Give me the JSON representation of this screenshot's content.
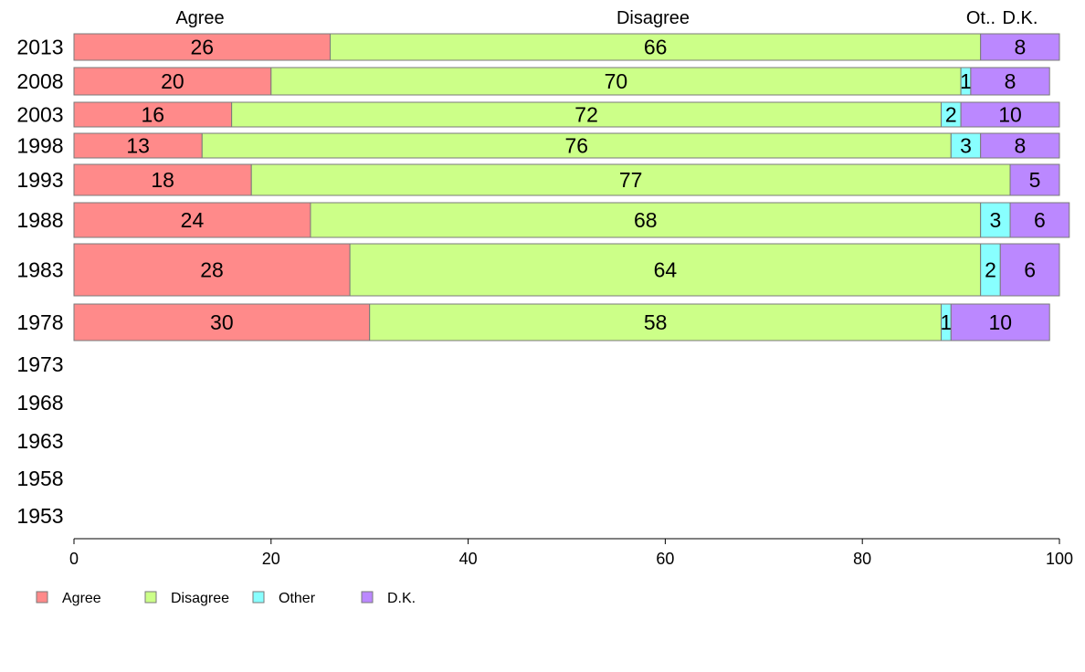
{
  "chart_data": {
    "type": "bar",
    "orientation": "horizontal",
    "stacked": true,
    "title": "",
    "xlabel": "",
    "ylabel": "",
    "xlim": [
      0,
      100
    ],
    "x_ticks": [
      0,
      20,
      40,
      60,
      80,
      100
    ],
    "grid": false,
    "legend_placement": "bottom-left",
    "categories": [
      "2013",
      "2008",
      "2003",
      "1998",
      "1993",
      "1988",
      "1983",
      "1978",
      "1973",
      "1968",
      "1963",
      "1958",
      "1953"
    ],
    "column_headers": [
      "Agree",
      "Disagree",
      "Ot..",
      "D.K."
    ],
    "series": [
      {
        "name": "Agree",
        "color": "#ff8a8a",
        "values": [
          26,
          20,
          16,
          13,
          18,
          24,
          28,
          30,
          null,
          null,
          null,
          null,
          null
        ]
      },
      {
        "name": "Disagree",
        "color": "#ccff88",
        "values": [
          66,
          70,
          72,
          76,
          77,
          68,
          64,
          58,
          null,
          null,
          null,
          null,
          null
        ]
      },
      {
        "name": "Other",
        "color": "#88ffff",
        "values": [
          0,
          1,
          2,
          3,
          0,
          3,
          2,
          1,
          null,
          null,
          null,
          null,
          null
        ]
      },
      {
        "name": "D.K.",
        "color": "#bb88ff",
        "values": [
          8,
          8,
          10,
          8,
          5,
          6,
          6,
          10,
          null,
          null,
          null,
          null,
          null
        ]
      }
    ]
  }
}
